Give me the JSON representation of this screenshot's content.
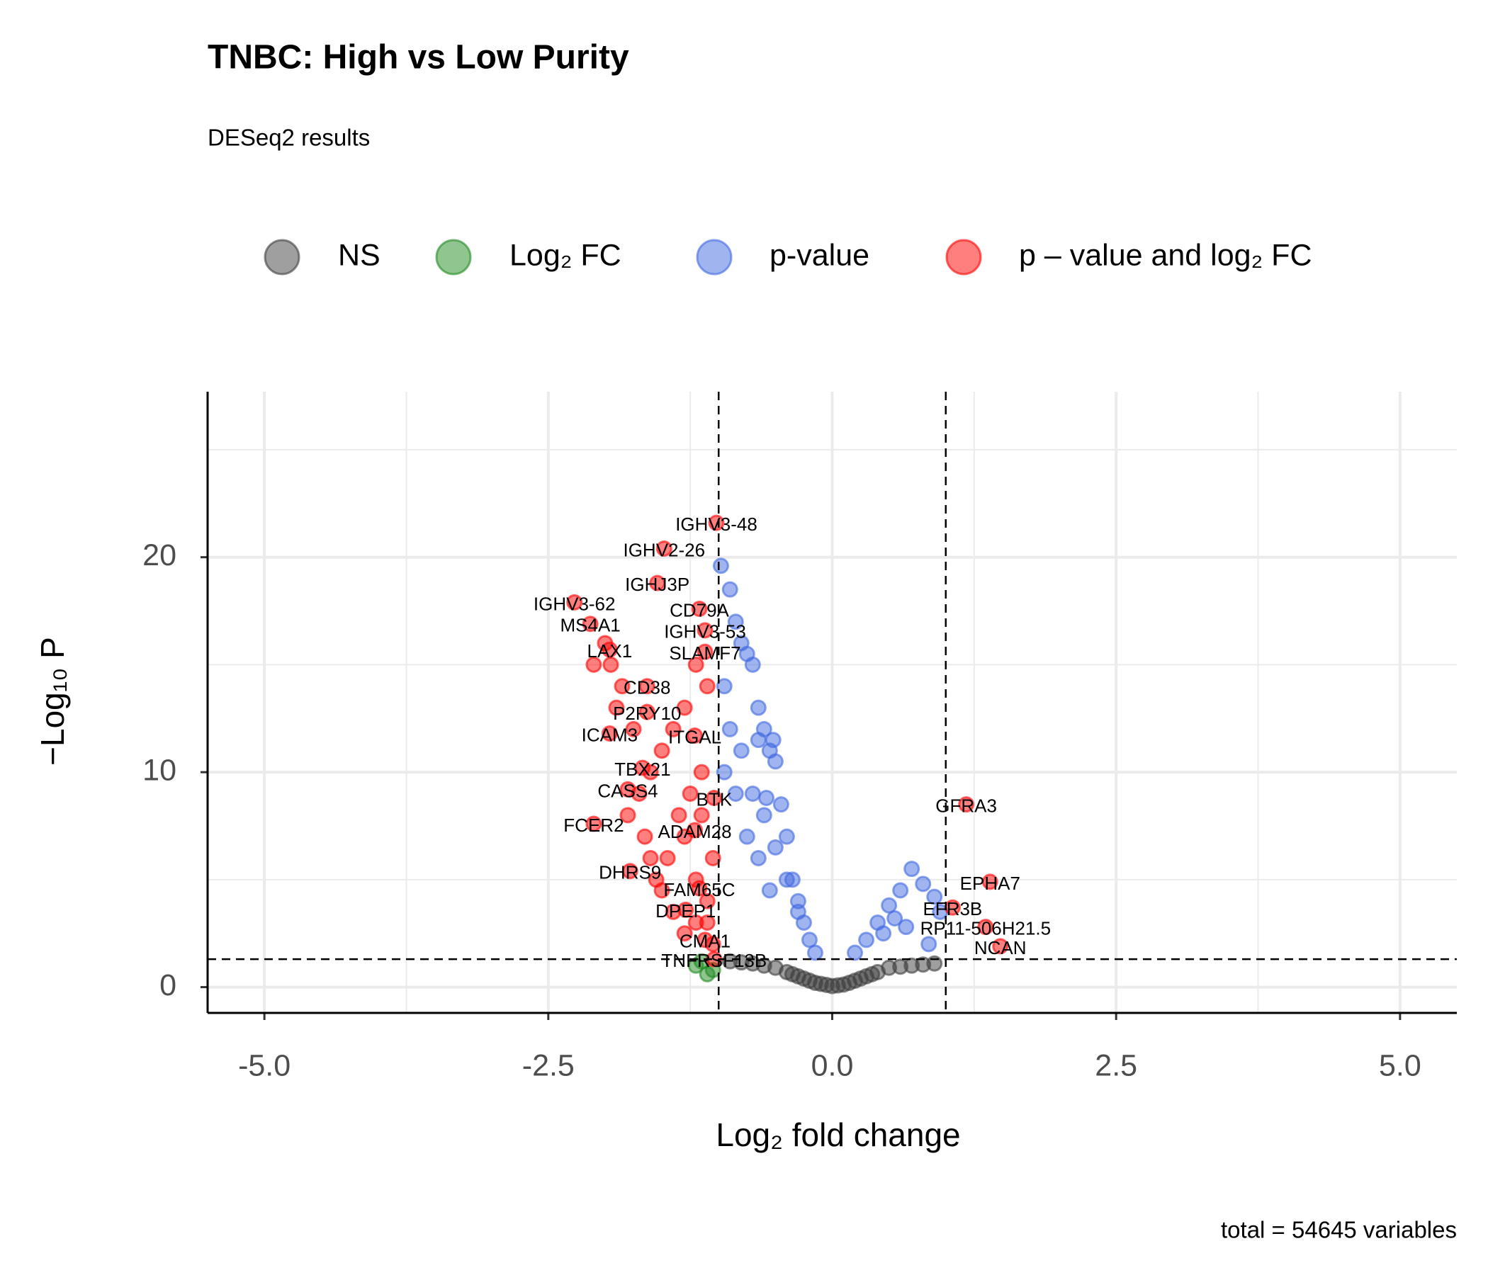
{
  "chart_data": {
    "type": "scatter",
    "title": "TNBC: High vs Low Purity",
    "subtitle": "DESeq2 results",
    "x_label": "Log₂ fold change",
    "y_label": "−Log₁₀ P",
    "caption": "total = 54645 variables",
    "xlim": [
      -5.5,
      5.5
    ],
    "ylim": [
      -1.2,
      27.7
    ],
    "xticks": [
      {
        "value": -5,
        "label": "-5.0"
      },
      -2.5,
      {
        "value": 0,
        "label": "0.0"
      },
      2.5,
      {
        "value": 5,
        "label": "5.0"
      }
    ],
    "yticks": [
      0,
      10,
      20
    ],
    "xminor": [
      -3.75,
      -1.25,
      1.25,
      3.75
    ],
    "yminor": [
      5,
      15,
      25
    ],
    "grid": true,
    "legend": "top",
    "cutoffs": {
      "x": [
        -1,
        1
      ],
      "y": 1.3
    },
    "series": [
      {
        "name": "NS",
        "color": "#404040",
        "x": [
          -0.9,
          -0.7,
          -0.5,
          -0.4,
          -0.3,
          -0.2,
          -0.1,
          0,
          0.1,
          0.2,
          0.3,
          0.4,
          0.5,
          0.7,
          0.9,
          -0.6,
          -0.15,
          0.05,
          0.15,
          0.6,
          -0.05,
          0.25,
          -0.25,
          0.35,
          -0.35,
          0.8,
          -0.8
        ],
        "values": [
          1.2,
          1.1,
          0.9,
          0.7,
          0.5,
          0.3,
          0.15,
          0.05,
          0.12,
          0.3,
          0.5,
          0.7,
          0.9,
          1.0,
          1.1,
          1.0,
          0.2,
          0.08,
          0.2,
          0.95,
          0.1,
          0.4,
          0.4,
          0.6,
          0.6,
          1.05,
          1.15
        ]
      },
      {
        "name": "Log₂ FC",
        "color": "#228B22",
        "x": [
          -1.2,
          -1.1,
          -1.05,
          -1.15
        ],
        "values": [
          1.0,
          0.6,
          0.8,
          1.2
        ]
      },
      {
        "name": "p-value",
        "color": "#4169E1",
        "x": [
          -0.98,
          -0.9,
          -0.85,
          -0.8,
          -0.75,
          -0.7,
          -0.65,
          -0.6,
          -0.55,
          -0.5,
          -0.45,
          -0.4,
          -0.35,
          -0.3,
          -0.25,
          -0.2,
          -0.15,
          -0.95,
          -0.9,
          -0.8,
          -0.7,
          -0.6,
          -0.5,
          -0.4,
          -0.3,
          -0.95,
          -0.85,
          -0.75,
          -0.65,
          -0.55,
          0.2,
          0.3,
          0.4,
          0.5,
          0.6,
          0.7,
          0.8,
          0.9,
          0.95,
          0.45,
          0.55,
          0.65,
          0.85,
          -0.65,
          -0.58,
          -0.52
        ],
        "values": [
          19.6,
          18.5,
          17,
          16,
          15.5,
          15,
          13,
          12,
          11,
          10.5,
          8.5,
          7,
          5,
          4,
          3,
          2.2,
          1.6,
          14,
          12,
          11,
          9,
          8,
          6.5,
          5,
          3.5,
          10,
          9,
          7,
          6,
          4.5,
          1.6,
          2.2,
          3,
          3.8,
          4.5,
          5.5,
          4.8,
          4.2,
          3.5,
          2.5,
          3.2,
          2.8,
          2,
          11.5,
          8.8,
          11.5
        ]
      },
      {
        "name": "p – value and log₂ FC",
        "color": "#FF0000",
        "x": [
          -1.1,
          -1.2,
          -1.3,
          -1.4,
          -1.5,
          -1.6,
          -1.7,
          -1.8,
          -1.9,
          -2.0,
          -2.1,
          -1.15,
          -1.25,
          -1.35,
          -1.45,
          -1.55,
          -1.65,
          -1.75,
          -1.85,
          -1.95,
          -1.05,
          -1.1,
          -1.2,
          -1.3,
          -1.4,
          -1.5,
          -1.6,
          -1.3,
          -1.2,
          -1.1,
          -1.05,
          -1.15
        ],
        "values": [
          14,
          15,
          13,
          12,
          11,
          10,
          9,
          8,
          13,
          16,
          15,
          10,
          9,
          8,
          6,
          5,
          7,
          12,
          14,
          15,
          6,
          4,
          3,
          2.5,
          3.5,
          4.5,
          6,
          7,
          5,
          3,
          2,
          8
        ]
      }
    ],
    "labels": [
      {
        "text": "IGHV3-48",
        "x": -1.02,
        "y": 21.6
      },
      {
        "text": "IGHV2-26",
        "x": -1.48,
        "y": 20.4
      },
      {
        "text": "IGHJ3P",
        "x": -1.54,
        "y": 18.8
      },
      {
        "text": "IGHV3-62",
        "x": -2.27,
        "y": 17.9
      },
      {
        "text": "CD79A",
        "x": -1.17,
        "y": 17.6
      },
      {
        "text": "MS4A1",
        "x": -2.13,
        "y": 16.9
      },
      {
        "text": "IGHV3-53",
        "x": -1.12,
        "y": 16.6
      },
      {
        "text": "LAX1",
        "x": -1.96,
        "y": 15.7
      },
      {
        "text": "SLAMF7",
        "x": -1.12,
        "y": 15.6
      },
      {
        "text": "CD38",
        "x": -1.63,
        "y": 14.0
      },
      {
        "text": "P2RY10",
        "x": -1.63,
        "y": 12.8
      },
      {
        "text": "ICAM3",
        "x": -1.96,
        "y": 11.8
      },
      {
        "text": "ITGAL",
        "x": -1.21,
        "y": 11.7
      },
      {
        "text": "TBX21",
        "x": -1.67,
        "y": 10.2
      },
      {
        "text": "CASS4",
        "x": -1.8,
        "y": 9.2
      },
      {
        "text": "BTK",
        "x": -1.04,
        "y": 8.8
      },
      {
        "text": "FCER2",
        "x": -2.1,
        "y": 7.6
      },
      {
        "text": "ADAM28",
        "x": -1.21,
        "y": 7.3
      },
      {
        "text": "DHRS9",
        "x": -1.78,
        "y": 5.4
      },
      {
        "text": "FAM65C",
        "x": -1.17,
        "y": 4.6
      },
      {
        "text": "DPEP1",
        "x": -1.29,
        "y": 3.6
      },
      {
        "text": "CMA1",
        "x": -1.12,
        "y": 2.2
      },
      {
        "text": "TNFRSF13B",
        "x": -1.04,
        "y": 1.3
      },
      {
        "text": "GFRA3",
        "x": 1.18,
        "y": 8.5
      },
      {
        "text": "EPHA7",
        "x": 1.39,
        "y": 4.9
      },
      {
        "text": "EFR3B",
        "x": 1.06,
        "y": 3.7
      },
      {
        "text": "RP11-506H21.5",
        "x": 1.35,
        "y": 2.8
      },
      {
        "text": "NCAN",
        "x": 1.48,
        "y": 1.9
      }
    ]
  }
}
